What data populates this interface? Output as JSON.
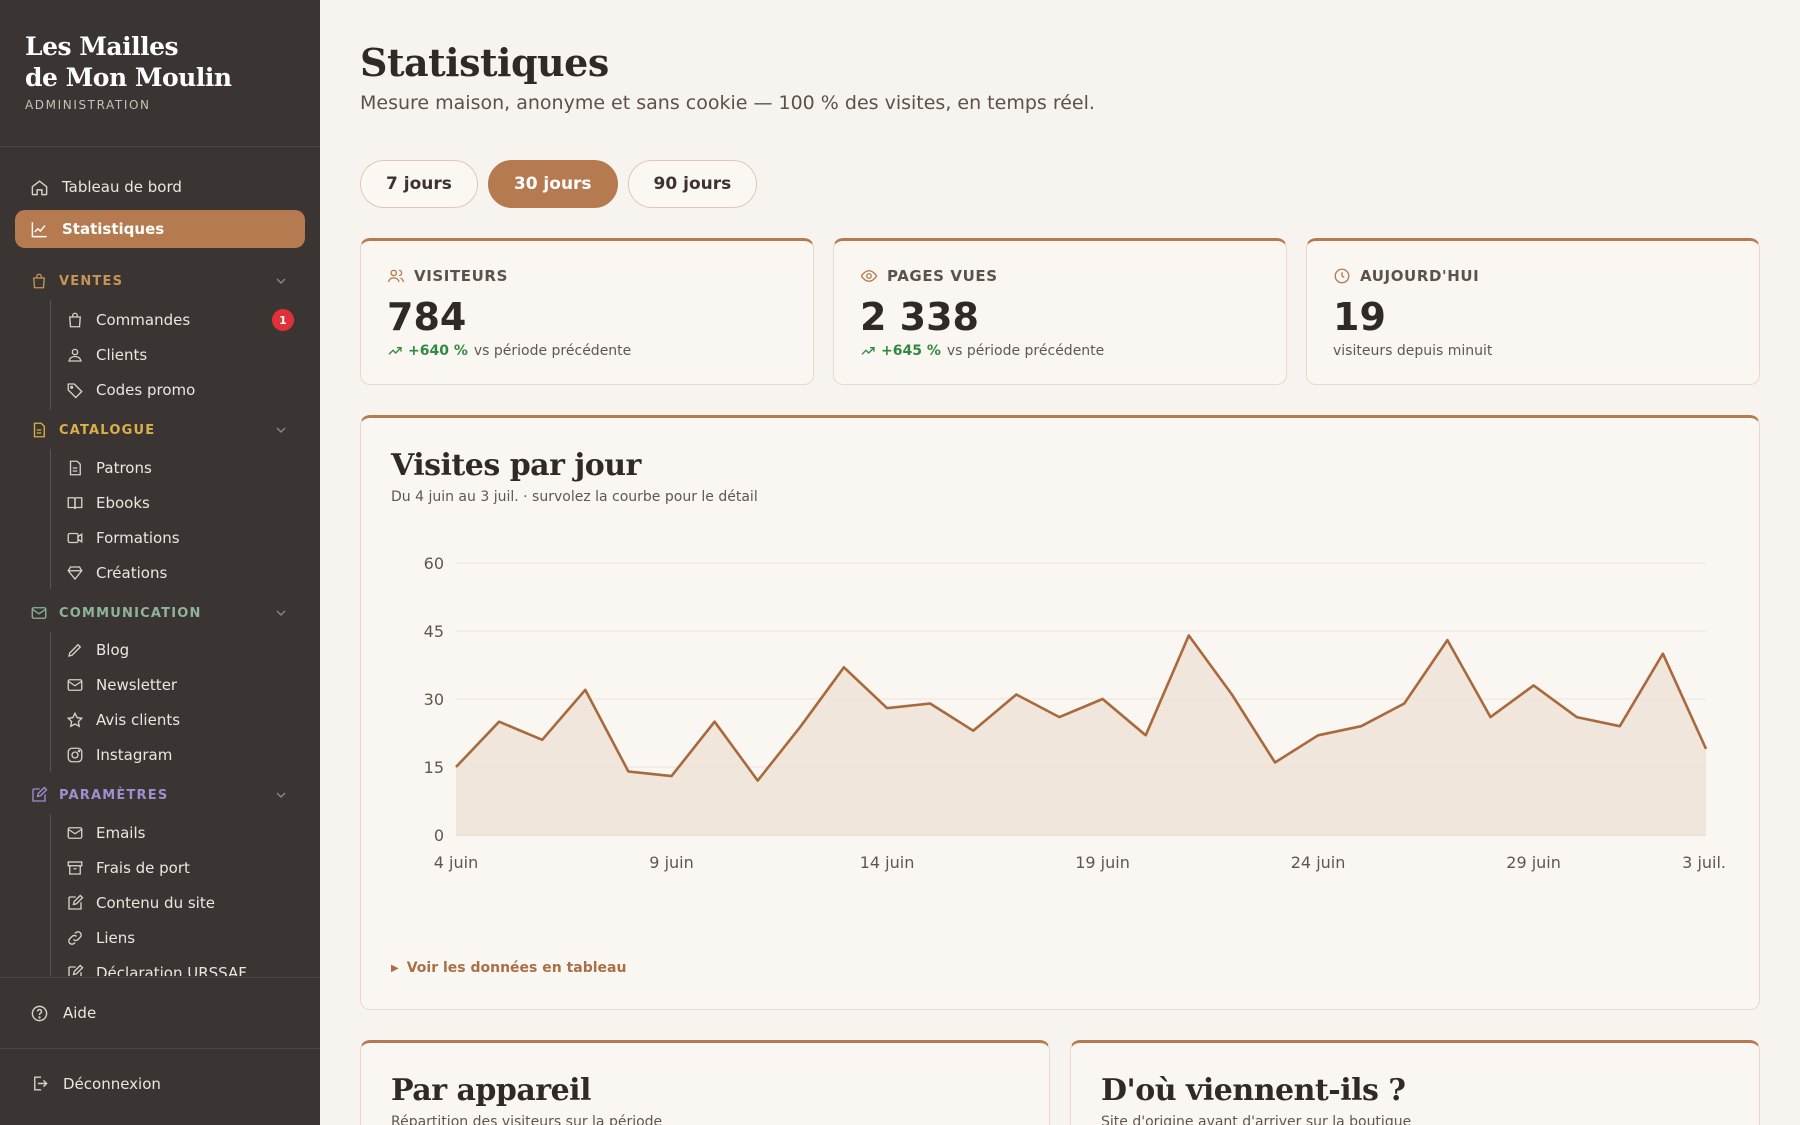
{
  "brand": {
    "name_line1": "Les Mailles",
    "name_line2": "de Mon Moulin",
    "subtitle": "ADMINISTRATION"
  },
  "nav": {
    "dashboard": "Tableau de bord",
    "stats": "Statistiques",
    "sections": {
      "ventes": {
        "label": "VENTES",
        "color": "#c69456",
        "items": [
          "Commandes",
          "Clients",
          "Codes promo"
        ],
        "orders_badge": "1"
      },
      "catalogue": {
        "label": "CATALOGUE",
        "color": "#d9b049",
        "items": [
          "Patrons",
          "Ebooks",
          "Formations",
          "Créations"
        ]
      },
      "communication": {
        "label": "COMMUNICATION",
        "color": "#8fb49a",
        "items": [
          "Blog",
          "Newsletter",
          "Avis clients",
          "Instagram"
        ]
      },
      "parametres": {
        "label": "PARAMÈTRES",
        "color": "#a08fd0",
        "items": [
          "Emails",
          "Frais de port",
          "Contenu du site",
          "Liens",
          "Déclaration URSSAF"
        ]
      }
    },
    "help": "Aide",
    "logout": "Déconnexion"
  },
  "page": {
    "title": "Statistiques",
    "subtitle": "Mesure maison, anonyme et sans cookie — 100 % des visites, en temps réel."
  },
  "periods": {
    "p7": "7 jours",
    "p30": "30 jours",
    "p90": "90 jours",
    "selected": "30 jours"
  },
  "kpis": {
    "visitors": {
      "label": "VISITEURS",
      "value": "784",
      "trend": "+640 %",
      "trend_text": "vs période précédente"
    },
    "pageviews": {
      "label": "PAGES VUES",
      "value": "2 338",
      "trend": "+645 %",
      "trend_text": "vs période précédente"
    },
    "today": {
      "label": "AUJOURD'HUI",
      "value": "19",
      "note": "visiteurs depuis minuit"
    }
  },
  "visits_card": {
    "title": "Visites par jour",
    "subtitle": "Du 4 juin au 3 juil. · survolez la courbe pour le détail",
    "toggle": "Voir les données en tableau"
  },
  "chart_data": {
    "type": "area",
    "ylim": [
      0,
      60
    ],
    "yticks": [
      0,
      15,
      30,
      45,
      60
    ],
    "xtick_labels": [
      "4 juin",
      "9 juin",
      "14 juin",
      "19 juin",
      "24 juin",
      "29 juin",
      "3 juil."
    ],
    "x": [
      "4 juin",
      "5 juin",
      "6 juin",
      "7 juin",
      "8 juin",
      "9 juin",
      "10 juin",
      "11 juin",
      "12 juin",
      "13 juin",
      "14 juin",
      "15 juin",
      "16 juin",
      "17 juin",
      "18 juin",
      "19 juin",
      "20 juin",
      "21 juin",
      "22 juin",
      "23 juin",
      "24 juin",
      "25 juin",
      "26 juin",
      "27 juin",
      "28 juin",
      "29 juin",
      "30 juin",
      "1 juil.",
      "2 juil.",
      "3 juil."
    ],
    "values": [
      15,
      25,
      21,
      32,
      14,
      13,
      25,
      12,
      24,
      37,
      28,
      29,
      23,
      31,
      26,
      30,
      22,
      44,
      31,
      16,
      22,
      24,
      29,
      43,
      26,
      33,
      26,
      24,
      40,
      19
    ],
    "line_color": "#a8693c",
    "fill_color": "#efe3d8",
    "grid": true
  },
  "device_card": {
    "title": "Par appareil",
    "subtitle": "Répartition des visiteurs sur la période"
  },
  "origin_card": {
    "title": "D'où viennent-ils ?",
    "subtitle": "Site d'origine avant d'arriver sur la boutique"
  }
}
